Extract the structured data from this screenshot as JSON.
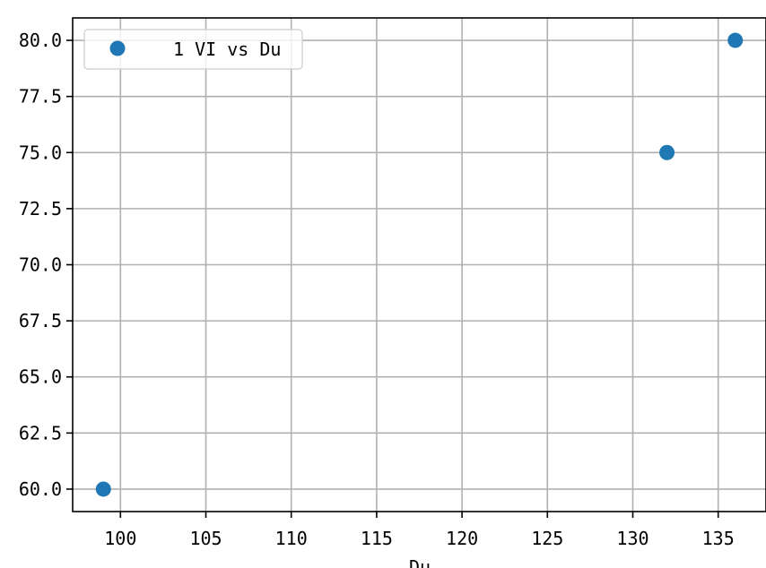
{
  "chart_data": {
    "type": "scatter",
    "title": "",
    "xlabel": "Du",
    "ylabel": "",
    "xlim": [
      97.2,
      137.8
    ],
    "ylim": [
      59.0,
      81.0
    ],
    "xticks": [
      100,
      105,
      110,
      115,
      120,
      125,
      130,
      135
    ],
    "xtick_labels": [
      "100",
      "105",
      "110",
      "115",
      "120",
      "125",
      "130",
      "135"
    ],
    "yticks": [
      60.0,
      62.5,
      65.0,
      67.5,
      70.0,
      72.5,
      75.0,
      77.5,
      80.0
    ],
    "ytick_labels": [
      "60.0",
      "62.5",
      "65.0",
      "67.5",
      "70.0",
      "72.5",
      "75.0",
      "77.5",
      "80.0"
    ],
    "grid": true,
    "legend_position": "top-left",
    "series": [
      {
        "name": "1 VI vs Du",
        "color": "#1f77b4",
        "points": [
          {
            "x": 99,
            "y": 60.0
          },
          {
            "x": 132,
            "y": 75.0
          },
          {
            "x": 136,
            "y": 80.0
          }
        ]
      }
    ]
  }
}
